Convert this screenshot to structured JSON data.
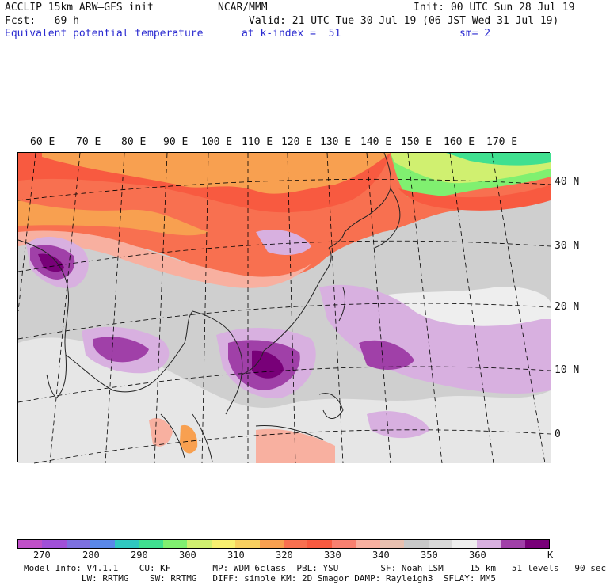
{
  "header": {
    "line1_left": "ACCLIP 15km ARW–GFS init",
    "line1_center": "NCAR/MMM",
    "line1_right": "Init: 00 UTC Sun 28 Jul 19",
    "line2_left": "Fcst:   69 h",
    "line2_right": "Valid: 21 UTC Tue 30 Jul 19 (06 JST Wed 31 Jul 19)",
    "line3_field": "Equivalent potential temperature",
    "line3_level": "at k-index =  51",
    "line3_smooth": "sm= 2"
  },
  "map": {
    "lon_labels": [
      "60 E",
      "70 E",
      "80 E",
      "90 E",
      "100 E",
      "110 E",
      "120 E",
      "130 E",
      "140 E",
      "150 E",
      "160 E",
      "170 E"
    ],
    "lat_labels": [
      "40 N",
      "30 N",
      "20 N",
      "10 N",
      "0"
    ]
  },
  "colorbar": {
    "colors": [
      "#c050c8",
      "#a050d8",
      "#7d70e0",
      "#5a88e8",
      "#30c8c0",
      "#40e090",
      "#80f070",
      "#d0f070",
      "#f8f070",
      "#f8d060",
      "#f8a050",
      "#f87050",
      "#f85a40",
      "#f88070",
      "#f8b0a0",
      "#e8c0b0",
      "#c8c8c8",
      "#d8d8d8",
      "#eeeeee",
      "#d8b0e0",
      "#a040a8",
      "#780078"
    ],
    "ticks": [
      "270",
      "280",
      "290",
      "300",
      "310",
      "320",
      "330",
      "340",
      "350",
      "360"
    ],
    "unit": "K"
  },
  "footer": {
    "line1": "Model Info: V4.1.1    CU: KF        MP: WDM 6class  PBL: YSU        SF: Noah LSM     15 km   51 levels   90 sec",
    "line2": "           LW: RRTMG    SW: RRTMG   DIFF: simple KM: 2D Smagor DAMP: Rayleigh3  SFLAY: MM5"
  }
}
